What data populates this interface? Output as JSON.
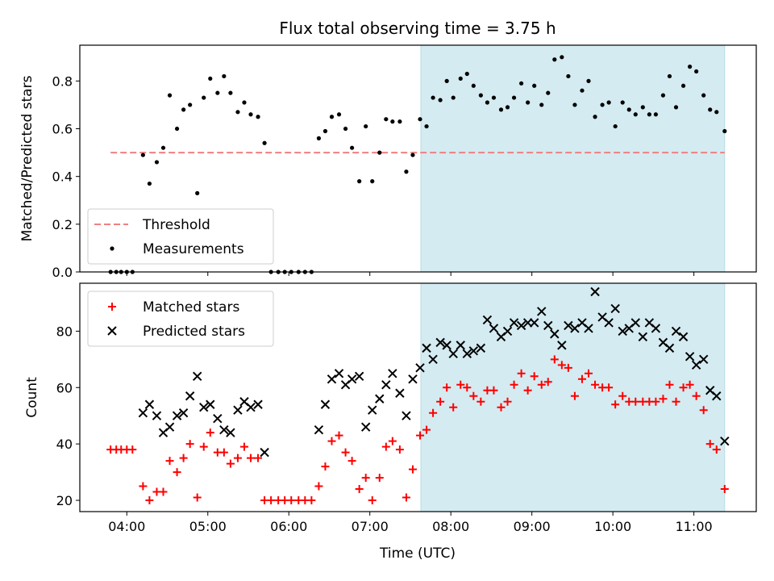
{
  "figure": {
    "title": "Flux total observing time = 3.75 h",
    "xlabel": "Time (UTC)",
    "x_ticks": [
      "04:00",
      "05:00",
      "06:00",
      "07:00",
      "08:00",
      "09:00",
      "10:00",
      "11:00"
    ],
    "x_tick_hours": [
      4,
      5,
      6,
      7,
      8,
      9,
      10,
      11
    ],
    "x_range_hours": [
      3.42,
      11.77
    ]
  },
  "chart_data": [
    {
      "type": "scatter",
      "panel": "top",
      "ylabel": "Matched/Predicted stars",
      "ylim": [
        0,
        0.95
      ],
      "y_ticks": [
        "0.0",
        "0.2",
        "0.4",
        "0.6",
        "0.8"
      ],
      "y_tick_values": [
        0,
        0.2,
        0.4,
        0.6,
        0.8
      ],
      "shaded_span_hours": [
        7.63,
        11.38
      ],
      "shade_color": "#d4ebf1",
      "legend_position": "lower-left",
      "threshold": {
        "name": "Threshold",
        "y": 0.5,
        "x_start": 3.8,
        "x_end": 11.38,
        "color": "#f08080"
      },
      "series": [
        {
          "name": "Measurements",
          "color": "#000000",
          "x": [
            3.8,
            3.87,
            3.93,
            4.0,
            4.07,
            4.2,
            4.28,
            4.37,
            4.45,
            4.53,
            4.62,
            4.7,
            4.78,
            4.87,
            4.95,
            5.03,
            5.12,
            5.2,
            5.28,
            5.37,
            5.45,
            5.53,
            5.62,
            5.7,
            5.78,
            5.87,
            5.95,
            6.03,
            6.12,
            6.2,
            6.28,
            6.37,
            6.45,
            6.53,
            6.62,
            6.7,
            6.78,
            6.87,
            6.95,
            7.03,
            7.12,
            7.2,
            7.28,
            7.37,
            7.45,
            7.53,
            7.62,
            7.7,
            7.78,
            7.87,
            7.95,
            8.03,
            8.12,
            8.2,
            8.28,
            8.37,
            8.45,
            8.53,
            8.62,
            8.7,
            8.78,
            8.87,
            8.95,
            9.03,
            9.12,
            9.2,
            9.28,
            9.37,
            9.45,
            9.53,
            9.62,
            9.7,
            9.78,
            9.87,
            9.95,
            10.03,
            10.12,
            10.2,
            10.28,
            10.37,
            10.45,
            10.53,
            10.62,
            10.7,
            10.78,
            10.87,
            10.95,
            11.03,
            11.12,
            11.2,
            11.28,
            11.38
          ],
          "y": [
            0,
            0,
            0,
            0,
            0,
            0.49,
            0.37,
            0.46,
            0.52,
            0.74,
            0.6,
            0.68,
            0.7,
            0.33,
            0.73,
            0.81,
            0.75,
            0.82,
            0.75,
            0.67,
            0.71,
            0.66,
            0.65,
            0.54,
            0,
            0,
            0,
            0,
            0,
            0,
            0,
            0.56,
            0.59,
            0.65,
            0.66,
            0.6,
            0.52,
            0.38,
            0.61,
            0.38,
            0.5,
            0.64,
            0.63,
            0.63,
            0.42,
            0.49,
            0.64,
            0.61,
            0.73,
            0.72,
            0.8,
            0.73,
            0.81,
            0.83,
            0.78,
            0.74,
            0.71,
            0.73,
            0.68,
            0.69,
            0.73,
            0.79,
            0.71,
            0.78,
            0.7,
            0.75,
            0.89,
            0.9,
            0.82,
            0.7,
            0.76,
            0.8,
            0.65,
            0.7,
            0.71,
            0.61,
            0.71,
            0.68,
            0.66,
            0.69,
            0.66,
            0.66,
            0.74,
            0.82,
            0.69,
            0.78,
            0.86,
            0.84,
            0.74,
            0.68,
            0.67,
            0.59
          ]
        }
      ]
    },
    {
      "type": "scatter",
      "panel": "bottom",
      "ylabel": "Count",
      "ylim": [
        16,
        97
      ],
      "y_ticks": [
        "20",
        "40",
        "60",
        "80"
      ],
      "y_tick_values": [
        20,
        40,
        60,
        80
      ],
      "shaded_span_hours": [
        7.63,
        11.38
      ],
      "shade_color": "#d4ebf1",
      "legend_position": "upper-left",
      "series": [
        {
          "name": "Matched stars",
          "marker": "plus",
          "color": "#ff0000",
          "x": [
            3.8,
            3.87,
            3.93,
            4.0,
            4.07,
            4.2,
            4.28,
            4.37,
            4.45,
            4.53,
            4.62,
            4.7,
            4.78,
            4.87,
            4.95,
            5.03,
            5.12,
            5.2,
            5.28,
            5.37,
            5.45,
            5.53,
            5.62,
            5.7,
            5.78,
            5.87,
            5.95,
            6.03,
            6.12,
            6.2,
            6.28,
            6.37,
            6.45,
            6.53,
            6.62,
            6.7,
            6.78,
            6.87,
            6.95,
            7.03,
            7.12,
            7.2,
            7.28,
            7.37,
            7.45,
            7.53,
            7.62,
            7.7,
            7.78,
            7.87,
            7.95,
            8.03,
            8.12,
            8.2,
            8.28,
            8.37,
            8.45,
            8.53,
            8.62,
            8.7,
            8.78,
            8.87,
            8.95,
            9.03,
            9.12,
            9.2,
            9.28,
            9.37,
            9.45,
            9.53,
            9.62,
            9.7,
            9.78,
            9.87,
            9.95,
            10.03,
            10.12,
            10.2,
            10.28,
            10.37,
            10.45,
            10.53,
            10.62,
            10.7,
            10.78,
            10.87,
            10.95,
            11.03,
            11.12,
            11.2,
            11.28,
            11.38
          ],
          "y": [
            38,
            38,
            38,
            38,
            38,
            25,
            20,
            23,
            23,
            34,
            30,
            35,
            40,
            21,
            39,
            44,
            37,
            37,
            33,
            35,
            39,
            35,
            35,
            20,
            20,
            20,
            20,
            20,
            20,
            20,
            20,
            25,
            32,
            41,
            43,
            37,
            34,
            24,
            28,
            20,
            28,
            39,
            41,
            38,
            21,
            31,
            43,
            45,
            51,
            55,
            60,
            53,
            61,
            60,
            57,
            55,
            59,
            59,
            53,
            55,
            61,
            65,
            59,
            64,
            61,
            62,
            70,
            68,
            67,
            57,
            63,
            65,
            61,
            60,
            60,
            54,
            57,
            55,
            55,
            55,
            55,
            55,
            56,
            61,
            55,
            60,
            61,
            57,
            52,
            40,
            38,
            24
          ]
        },
        {
          "name": "Predicted stars",
          "marker": "x",
          "color": "#000000",
          "x": [
            4.2,
            4.28,
            4.37,
            4.45,
            4.53,
            4.62,
            4.7,
            4.78,
            4.87,
            4.95,
            5.03,
            5.12,
            5.2,
            5.28,
            5.37,
            5.45,
            5.53,
            5.62,
            5.7,
            6.37,
            6.45,
            6.53,
            6.62,
            6.7,
            6.78,
            6.87,
            6.95,
            7.03,
            7.12,
            7.2,
            7.28,
            7.37,
            7.45,
            7.53,
            7.62,
            7.7,
            7.78,
            7.87,
            7.95,
            8.03,
            8.12,
            8.2,
            8.28,
            8.37,
            8.45,
            8.53,
            8.62,
            8.7,
            8.78,
            8.87,
            8.95,
            9.03,
            9.12,
            9.2,
            9.28,
            9.37,
            9.45,
            9.53,
            9.62,
            9.7,
            9.78,
            9.87,
            9.95,
            10.03,
            10.12,
            10.2,
            10.28,
            10.37,
            10.45,
            10.53,
            10.62,
            10.7,
            10.78,
            10.87,
            10.95,
            11.03,
            11.12,
            11.2,
            11.28,
            11.38
          ],
          "y": [
            51,
            54,
            50,
            44,
            46,
            50,
            51,
            57,
            64,
            53,
            54,
            49,
            45,
            44,
            52,
            55,
            53,
            54,
            37,
            45,
            54,
            63,
            65,
            61,
            63,
            64,
            46,
            52,
            56,
            61,
            65,
            58,
            50,
            63,
            67,
            74,
            70,
            76,
            75,
            72,
            75,
            72,
            73,
            74,
            84,
            81,
            78,
            80,
            83,
            82,
            83,
            83,
            87,
            82,
            79,
            75,
            82,
            81,
            83,
            81,
            94,
            85,
            83,
            88,
            80,
            81,
            83,
            78,
            83,
            81,
            76,
            74,
            80,
            78,
            71,
            68,
            70,
            59,
            57,
            41
          ]
        }
      ]
    }
  ]
}
